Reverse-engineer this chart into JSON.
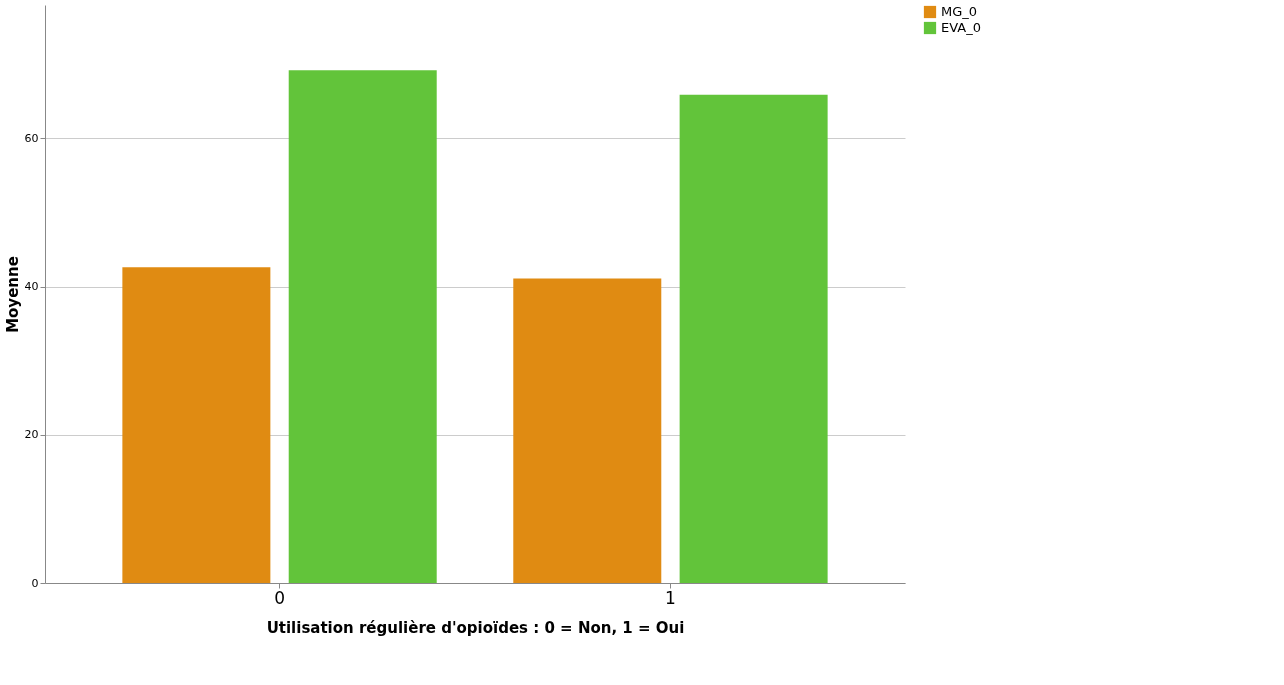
{
  "chart_data": {
    "type": "bar",
    "xlabel": "Utilisation régulière d'opioïdes : 0 = Non, 1 = Oui",
    "ylabel": "Moyenne",
    "categories": [
      "0",
      "1"
    ],
    "series": [
      {
        "name": "MG_0",
        "color": "#e08b12",
        "values": [
          42.6,
          41.1
        ]
      },
      {
        "name": "EVA_0",
        "color": "#62c43a",
        "values": [
          69.2,
          65.9
        ]
      }
    ],
    "ylim": [
      0,
      78
    ],
    "yticks": [
      0,
      20,
      40,
      60
    ],
    "grid": "y",
    "legend": "top right"
  }
}
